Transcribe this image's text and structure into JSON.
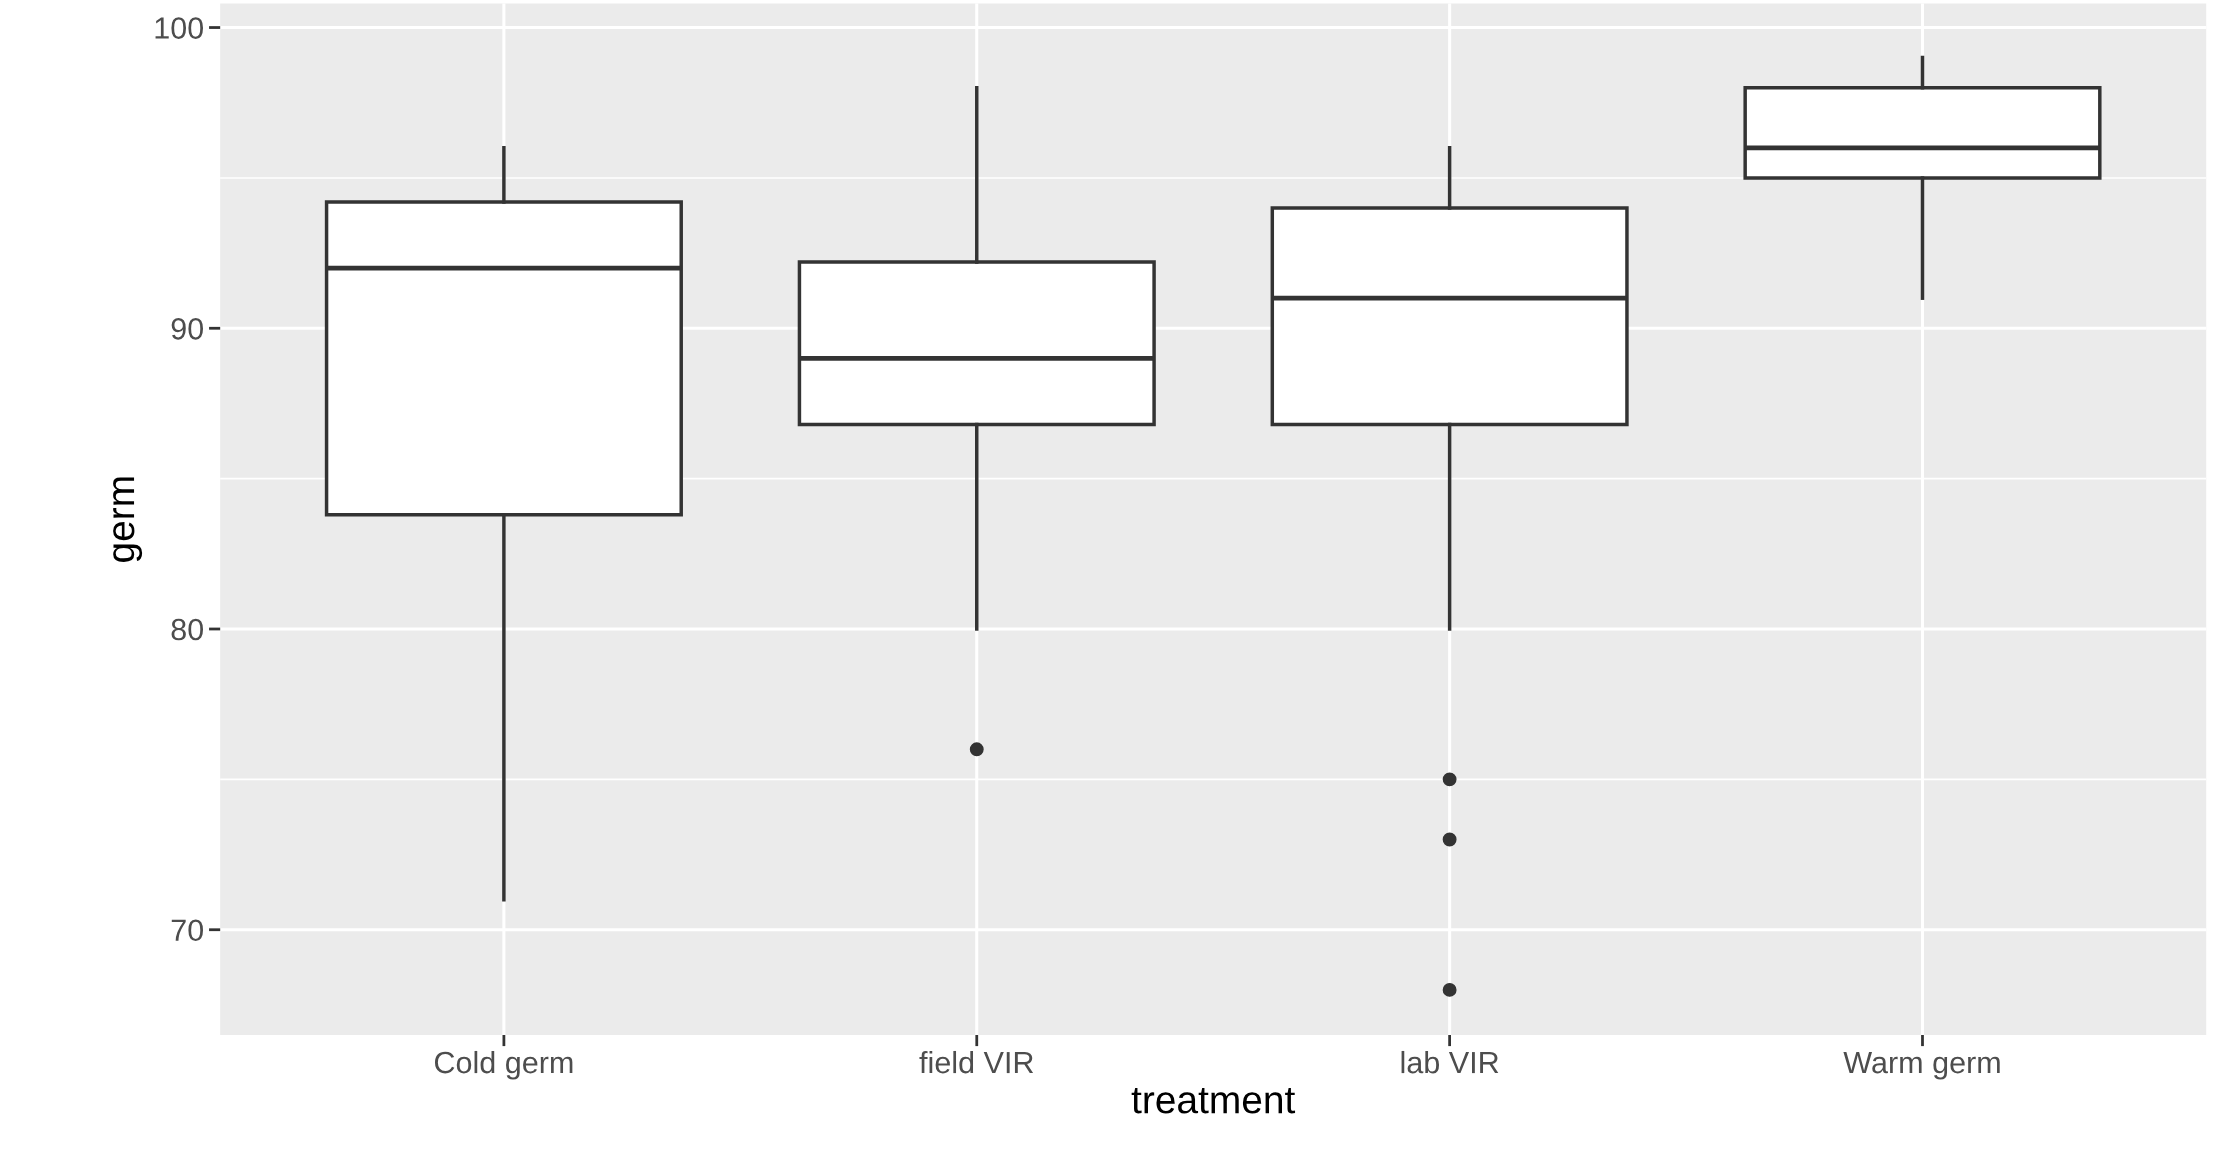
{
  "chart_data": {
    "type": "box",
    "xlabel": "treatment",
    "ylabel": "germ",
    "categories": [
      "Cold germ",
      "field VIR",
      "lab VIR",
      "Warm germ"
    ],
    "boxes": [
      {
        "low": 71,
        "q1": 83.8,
        "median": 92,
        "q3": 94.2,
        "high": 96
      },
      {
        "low": 80,
        "q1": 86.8,
        "median": 89,
        "q3": 92.2,
        "high": 98,
        "outliers": [
          76
        ]
      },
      {
        "low": 80,
        "q1": 86.8,
        "median": 91,
        "q3": 94,
        "high": 96,
        "outliers": [
          75,
          73,
          68
        ]
      },
      {
        "low": 91,
        "q1": 95,
        "median": 96,
        "q3": 98,
        "high": 99
      }
    ],
    "ylim": [
      66.5,
      100.8
    ],
    "yticks": [
      70,
      80,
      90,
      100
    ],
    "grid": true
  }
}
